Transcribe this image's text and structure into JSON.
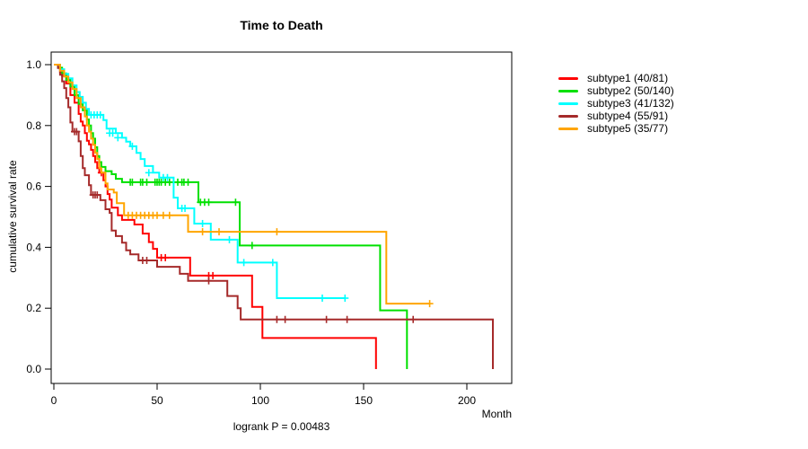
{
  "figure": {
    "title": "Time to Death",
    "x_axis_label": "Month",
    "y_axis_label": "cumulative survival rate",
    "footnote": "logrank P = 0.00483"
  },
  "legend": {
    "position": "right-outside",
    "items": [
      {
        "label": "subtype1 (40/81)",
        "color": "#ff0000"
      },
      {
        "label": "subtype2 (50/140)",
        "color": "#00e000"
      },
      {
        "label": "subtype3 (41/132)",
        "color": "#00ffff"
      },
      {
        "label": "subtype4 (55/91)",
        "color": "#a52a2a"
      },
      {
        "label": "subtype5 (35/77)",
        "color": "#ffa500"
      }
    ]
  },
  "chart_data": {
    "type": "line",
    "variant": "kaplan-meier-step",
    "title": "Time to Death",
    "xlabel": "Month",
    "ylabel": "cumulative survival rate",
    "annotation": "logrank P = 0.00483",
    "xlim": [
      0,
      222
    ],
    "ylim": [
      0.0,
      1.0
    ],
    "x_ticks": [
      0,
      50,
      100,
      150,
      200
    ],
    "y_ticks": [
      "0.0",
      "0.2",
      "0.4",
      "0.6",
      "0.8",
      "1.0"
    ],
    "grid": false,
    "series": [
      {
        "name": "subtype1",
        "label": "subtype1 (40/81)",
        "color": "#ff0000",
        "events": 40,
        "n": 81,
        "end_time": 156,
        "end_type": "event-to-zero",
        "steps": [
          [
            3,
            0.975
          ],
          [
            4,
            0.963
          ],
          [
            6,
            0.938
          ],
          [
            8,
            0.9
          ],
          [
            10,
            0.875
          ],
          [
            12,
            0.838
          ],
          [
            13,
            0.813
          ],
          [
            14,
            0.8
          ],
          [
            15,
            0.775
          ],
          [
            16,
            0.75
          ],
          [
            17,
            0.738
          ],
          [
            18,
            0.72
          ],
          [
            19,
            0.7
          ],
          [
            20,
            0.68
          ],
          [
            21,
            0.66
          ],
          [
            22,
            0.645
          ],
          [
            24,
            0.62
          ],
          [
            25,
            0.6
          ],
          [
            26,
            0.575
          ],
          [
            27,
            0.557
          ],
          [
            28,
            0.53
          ],
          [
            31,
            0.505
          ],
          [
            33,
            0.49
          ],
          [
            39,
            0.475
          ],
          [
            43,
            0.445
          ],
          [
            46,
            0.417
          ],
          [
            48,
            0.395
          ],
          [
            50,
            0.366
          ],
          [
            66,
            0.307
          ],
          [
            96,
            0.204
          ],
          [
            101,
            0.102
          ],
          [
            156,
            0.0
          ]
        ],
        "censors": [
          [
            23,
            0.645
          ],
          [
            52,
            0.366
          ],
          [
            54,
            0.366
          ],
          [
            75,
            0.307
          ],
          [
            77,
            0.307
          ]
        ]
      },
      {
        "name": "subtype2",
        "label": "subtype2 (50/140)",
        "color": "#00e000",
        "events": 50,
        "n": 140,
        "end_time": 171,
        "end_type": "event-to-zero",
        "steps": [
          [
            2,
            0.99
          ],
          [
            4,
            0.971
          ],
          [
            6,
            0.95
          ],
          [
            8,
            0.928
          ],
          [
            10,
            0.9
          ],
          [
            12,
            0.871
          ],
          [
            14,
            0.85
          ],
          [
            16,
            0.82
          ],
          [
            17,
            0.8
          ],
          [
            18,
            0.775
          ],
          [
            19,
            0.757
          ],
          [
            20,
            0.729
          ],
          [
            21,
            0.7
          ],
          [
            22,
            0.68
          ],
          [
            23,
            0.664
          ],
          [
            25,
            0.65
          ],
          [
            28,
            0.64
          ],
          [
            30,
            0.625
          ],
          [
            33,
            0.614
          ],
          [
            70,
            0.548
          ],
          [
            90,
            0.406
          ],
          [
            158,
            0.193
          ],
          [
            171,
            0.0
          ]
        ],
        "censors": [
          [
            37,
            0.614
          ],
          [
            38,
            0.614
          ],
          [
            42,
            0.614
          ],
          [
            43,
            0.614
          ],
          [
            45,
            0.614
          ],
          [
            49,
            0.614
          ],
          [
            50,
            0.614
          ],
          [
            51,
            0.614
          ],
          [
            52,
            0.614
          ],
          [
            54,
            0.614
          ],
          [
            56,
            0.614
          ],
          [
            60,
            0.614
          ],
          [
            62,
            0.614
          ],
          [
            63,
            0.614
          ],
          [
            65,
            0.614
          ],
          [
            71,
            0.548
          ],
          [
            73,
            0.548
          ],
          [
            75,
            0.548
          ],
          [
            88,
            0.548
          ],
          [
            96,
            0.406
          ]
        ]
      },
      {
        "name": "subtype3",
        "label": "subtype3 (41/132)",
        "color": "#00ffff",
        "events": 41,
        "n": 132,
        "end_time": 141,
        "end_type": "censored",
        "steps": [
          [
            3,
            0.985
          ],
          [
            5,
            0.97
          ],
          [
            7,
            0.955
          ],
          [
            9,
            0.932
          ],
          [
            11,
            0.91
          ],
          [
            12.5,
            0.894
          ],
          [
            14,
            0.875
          ],
          [
            15.5,
            0.855
          ],
          [
            17,
            0.835
          ],
          [
            24,
            0.818
          ],
          [
            25.5,
            0.79
          ],
          [
            30,
            0.775
          ],
          [
            33,
            0.76
          ],
          [
            35,
            0.747
          ],
          [
            37,
            0.732
          ],
          [
            40,
            0.71
          ],
          [
            42,
            0.69
          ],
          [
            44,
            0.667
          ],
          [
            48,
            0.645
          ],
          [
            51,
            0.629
          ],
          [
            58,
            0.563
          ],
          [
            60,
            0.528
          ],
          [
            68,
            0.478
          ],
          [
            76,
            0.425
          ],
          [
            89,
            0.35
          ],
          [
            108,
            0.233
          ]
        ],
        "censors": [
          [
            18,
            0.835
          ],
          [
            19.5,
            0.835
          ],
          [
            21,
            0.835
          ],
          [
            22.5,
            0.835
          ],
          [
            27,
            0.775
          ],
          [
            28.5,
            0.775
          ],
          [
            31,
            0.76
          ],
          [
            38,
            0.732
          ],
          [
            46,
            0.645
          ],
          [
            53,
            0.629
          ],
          [
            55,
            0.629
          ],
          [
            62,
            0.528
          ],
          [
            63.5,
            0.528
          ],
          [
            72,
            0.478
          ],
          [
            85,
            0.425
          ],
          [
            92,
            0.35
          ],
          [
            106,
            0.35
          ],
          [
            130,
            0.233
          ],
          [
            141,
            0.233
          ]
        ]
      },
      {
        "name": "subtype4",
        "label": "subtype4 (55/91)",
        "color": "#a52a2a",
        "events": 55,
        "n": 91,
        "end_time": 212.6,
        "end_type": "event-to-zero",
        "steps": [
          [
            2,
            0.989
          ],
          [
            3,
            0.967
          ],
          [
            4,
            0.945
          ],
          [
            5,
            0.923
          ],
          [
            6,
            0.89
          ],
          [
            7,
            0.86
          ],
          [
            8,
            0.81
          ],
          [
            9,
            0.78
          ],
          [
            12,
            0.748
          ],
          [
            13,
            0.7
          ],
          [
            14,
            0.66
          ],
          [
            15,
            0.637
          ],
          [
            17,
            0.604
          ],
          [
            18,
            0.572
          ],
          [
            22.5,
            0.555
          ],
          [
            25,
            0.525
          ],
          [
            27,
            0.513
          ],
          [
            28,
            0.455
          ],
          [
            30,
            0.437
          ],
          [
            33,
            0.415
          ],
          [
            35,
            0.39
          ],
          [
            37,
            0.377
          ],
          [
            41,
            0.357
          ],
          [
            50,
            0.336
          ],
          [
            61,
            0.313
          ],
          [
            65,
            0.29
          ],
          [
            84,
            0.24
          ],
          [
            89,
            0.2
          ],
          [
            90.5,
            0.163
          ],
          [
            212.6,
            0.0
          ]
        ],
        "censors": [
          [
            10,
            0.78
          ],
          [
            11,
            0.78
          ],
          [
            19,
            0.572
          ],
          [
            20,
            0.572
          ],
          [
            21,
            0.572
          ],
          [
            43,
            0.357
          ],
          [
            45,
            0.357
          ],
          [
            75,
            0.29
          ],
          [
            108,
            0.163
          ],
          [
            112,
            0.163
          ],
          [
            132,
            0.163
          ],
          [
            142,
            0.163
          ],
          [
            174,
            0.163
          ]
        ]
      },
      {
        "name": "subtype5",
        "label": "subtype5 (35/77)",
        "color": "#ffa500",
        "events": 35,
        "n": 77,
        "end_time": 182,
        "end_type": "censored",
        "steps": [
          [
            3,
            0.98
          ],
          [
            5,
            0.961
          ],
          [
            7,
            0.942
          ],
          [
            9,
            0.92
          ],
          [
            11,
            0.89
          ],
          [
            13,
            0.86
          ],
          [
            15,
            0.83
          ],
          [
            16,
            0.8
          ],
          [
            17,
            0.78
          ],
          [
            18,
            0.757
          ],
          [
            19,
            0.737
          ],
          [
            20,
            0.71
          ],
          [
            21,
            0.69
          ],
          [
            22,
            0.66
          ],
          [
            23,
            0.645
          ],
          [
            25,
            0.61
          ],
          [
            26,
            0.59
          ],
          [
            29,
            0.58
          ],
          [
            30.5,
            0.545
          ],
          [
            34,
            0.505
          ],
          [
            65,
            0.451
          ],
          [
            161,
            0.215
          ]
        ],
        "censors": [
          [
            36,
            0.505
          ],
          [
            38,
            0.505
          ],
          [
            40,
            0.505
          ],
          [
            42,
            0.505
          ],
          [
            44,
            0.505
          ],
          [
            46,
            0.505
          ],
          [
            48,
            0.505
          ],
          [
            50,
            0.505
          ],
          [
            53,
            0.505
          ],
          [
            56,
            0.505
          ],
          [
            72,
            0.451
          ],
          [
            80,
            0.451
          ],
          [
            108,
            0.451
          ],
          [
            182,
            0.215
          ]
        ]
      }
    ]
  }
}
